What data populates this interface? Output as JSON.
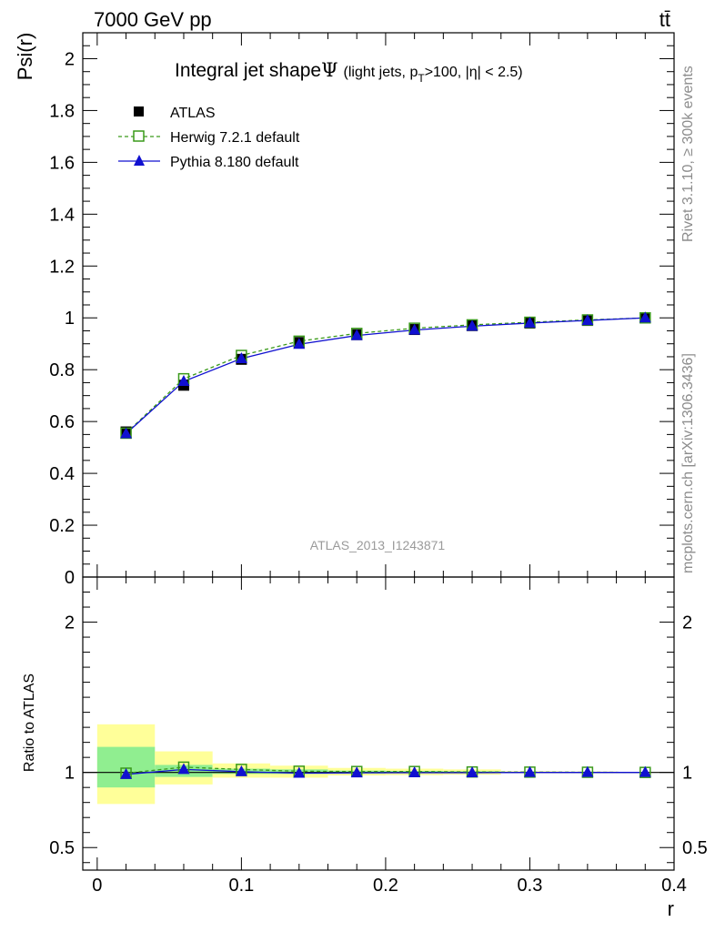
{
  "header": {
    "energy": "7000 GeV pp",
    "process": "tt̄"
  },
  "side_labels": {
    "rivet": "Rivet 3.1.10, ≥ 300k events",
    "mcplots": "mcplots.cern.ch [arXiv:1306.3436]"
  },
  "colors": {
    "data": "#000000",
    "herwig": "#3a9a1a",
    "pythia": "#1010d0",
    "band_inner": "#90ee90",
    "band_outer": "#ffff99"
  },
  "chart_data": [
    {
      "type": "line",
      "title": "Integral jet shape",
      "title_symbol": "Ψ",
      "title_sub_pre": "(light jets, p",
      "title_sub_T": "T",
      "title_sub_post": ">100, |η| < 2.5)",
      "ylabel": "Psi(r)",
      "xlabel": "r",
      "watermark": "ATLAS_2013_I1243871",
      "xlim": [
        -0.01,
        0.4
      ],
      "ylim": [
        0,
        2.1
      ],
      "x_ticks": [
        0,
        0.1,
        0.2,
        0.3,
        0.4
      ],
      "x_tick_labels": [
        "0",
        "0.1",
        "0.2",
        "0.3",
        "0.4"
      ],
      "y_ticks": [
        0,
        0.2,
        0.4,
        0.6,
        0.8,
        1,
        1.2,
        1.4,
        1.6,
        1.8,
        2
      ],
      "y_tick_labels": [
        "0",
        "0.2",
        "0.4",
        "0.6",
        "0.8",
        "1",
        "1.2",
        "1.4",
        "1.6",
        "1.8",
        "2"
      ],
      "legend_position": "top-left",
      "x": [
        0.02,
        0.06,
        0.1,
        0.14,
        0.18,
        0.22,
        0.26,
        0.3,
        0.34,
        0.38
      ],
      "series": [
        {
          "name": "ATLAS",
          "style": "data",
          "values": [
            0.56,
            0.74,
            0.84,
            0.905,
            0.935,
            0.955,
            0.97,
            0.98,
            0.99,
            1.0
          ]
        },
        {
          "name": "Herwig 7.2.1 default",
          "style": "herwig",
          "values": [
            0.555,
            0.765,
            0.855,
            0.91,
            0.94,
            0.96,
            0.973,
            0.983,
            0.992,
            1.0
          ]
        },
        {
          "name": "Pythia 8.180 default",
          "style": "pythia",
          "values": [
            0.553,
            0.755,
            0.843,
            0.898,
            0.932,
            0.953,
            0.968,
            0.98,
            0.99,
            1.0
          ]
        }
      ]
    },
    {
      "type": "line",
      "ylabel": "Ratio to ATLAS",
      "ylim": [
        0.35,
        2.3
      ],
      "y_ticks": [
        0.5,
        1,
        2
      ],
      "y_tick_labels": [
        "0.5",
        "1",
        "2"
      ],
      "x": [
        0.02,
        0.06,
        0.1,
        0.14,
        0.18,
        0.22,
        0.26,
        0.3,
        0.34,
        0.38
      ],
      "bands": [
        {
          "xmin": 0.0,
          "xmax": 0.04,
          "inner": [
            0.9,
            1.17
          ],
          "outer": [
            0.79,
            1.32
          ]
        },
        {
          "xmin": 0.04,
          "xmax": 0.08,
          "inner": [
            0.97,
            1.05
          ],
          "outer": [
            0.92,
            1.14
          ]
        },
        {
          "xmin": 0.08,
          "xmax": 0.12,
          "inner": [
            0.99,
            1.025
          ],
          "outer": [
            0.965,
            1.06
          ]
        },
        {
          "xmin": 0.12,
          "xmax": 0.16,
          "inner": [
            0.99,
            1.02
          ],
          "outer": [
            0.965,
            1.045
          ]
        },
        {
          "xmin": 0.16,
          "xmax": 0.2,
          "inner": [
            0.993,
            1.012
          ],
          "outer": [
            0.98,
            1.03
          ]
        },
        {
          "xmin": 0.2,
          "xmax": 0.24,
          "inner": [
            0.995,
            1.01
          ],
          "outer": [
            0.982,
            1.025
          ]
        },
        {
          "xmin": 0.24,
          "xmax": 0.28,
          "inner": [
            0.996,
            1.008
          ],
          "outer": [
            0.985,
            1.02
          ]
        },
        {
          "xmin": 0.28,
          "xmax": 0.32,
          "inner": [
            0.998,
            1.004
          ],
          "outer": [
            0.995,
            1.008
          ]
        },
        {
          "xmin": 0.32,
          "xmax": 0.36,
          "inner": [
            0.998,
            1.003
          ],
          "outer": [
            0.996,
            1.006
          ]
        },
        {
          "xmin": 0.36,
          "xmax": 0.4,
          "inner": [
            0.999,
            1.001
          ],
          "outer": [
            0.998,
            1.002
          ]
        }
      ],
      "series": [
        {
          "name": "Herwig 7.2.1 default",
          "style": "herwig",
          "values": [
            0.995,
            1.035,
            1.02,
            1.008,
            1.006,
            1.006,
            1.003,
            1.002,
            1.001,
            1.0
          ]
        },
        {
          "name": "Pythia 8.180 default",
          "style": "pythia",
          "values": [
            0.987,
            1.02,
            1.005,
            0.995,
            0.997,
            0.998,
            0.998,
            1.0,
            1.0,
            1.0
          ]
        }
      ]
    }
  ]
}
